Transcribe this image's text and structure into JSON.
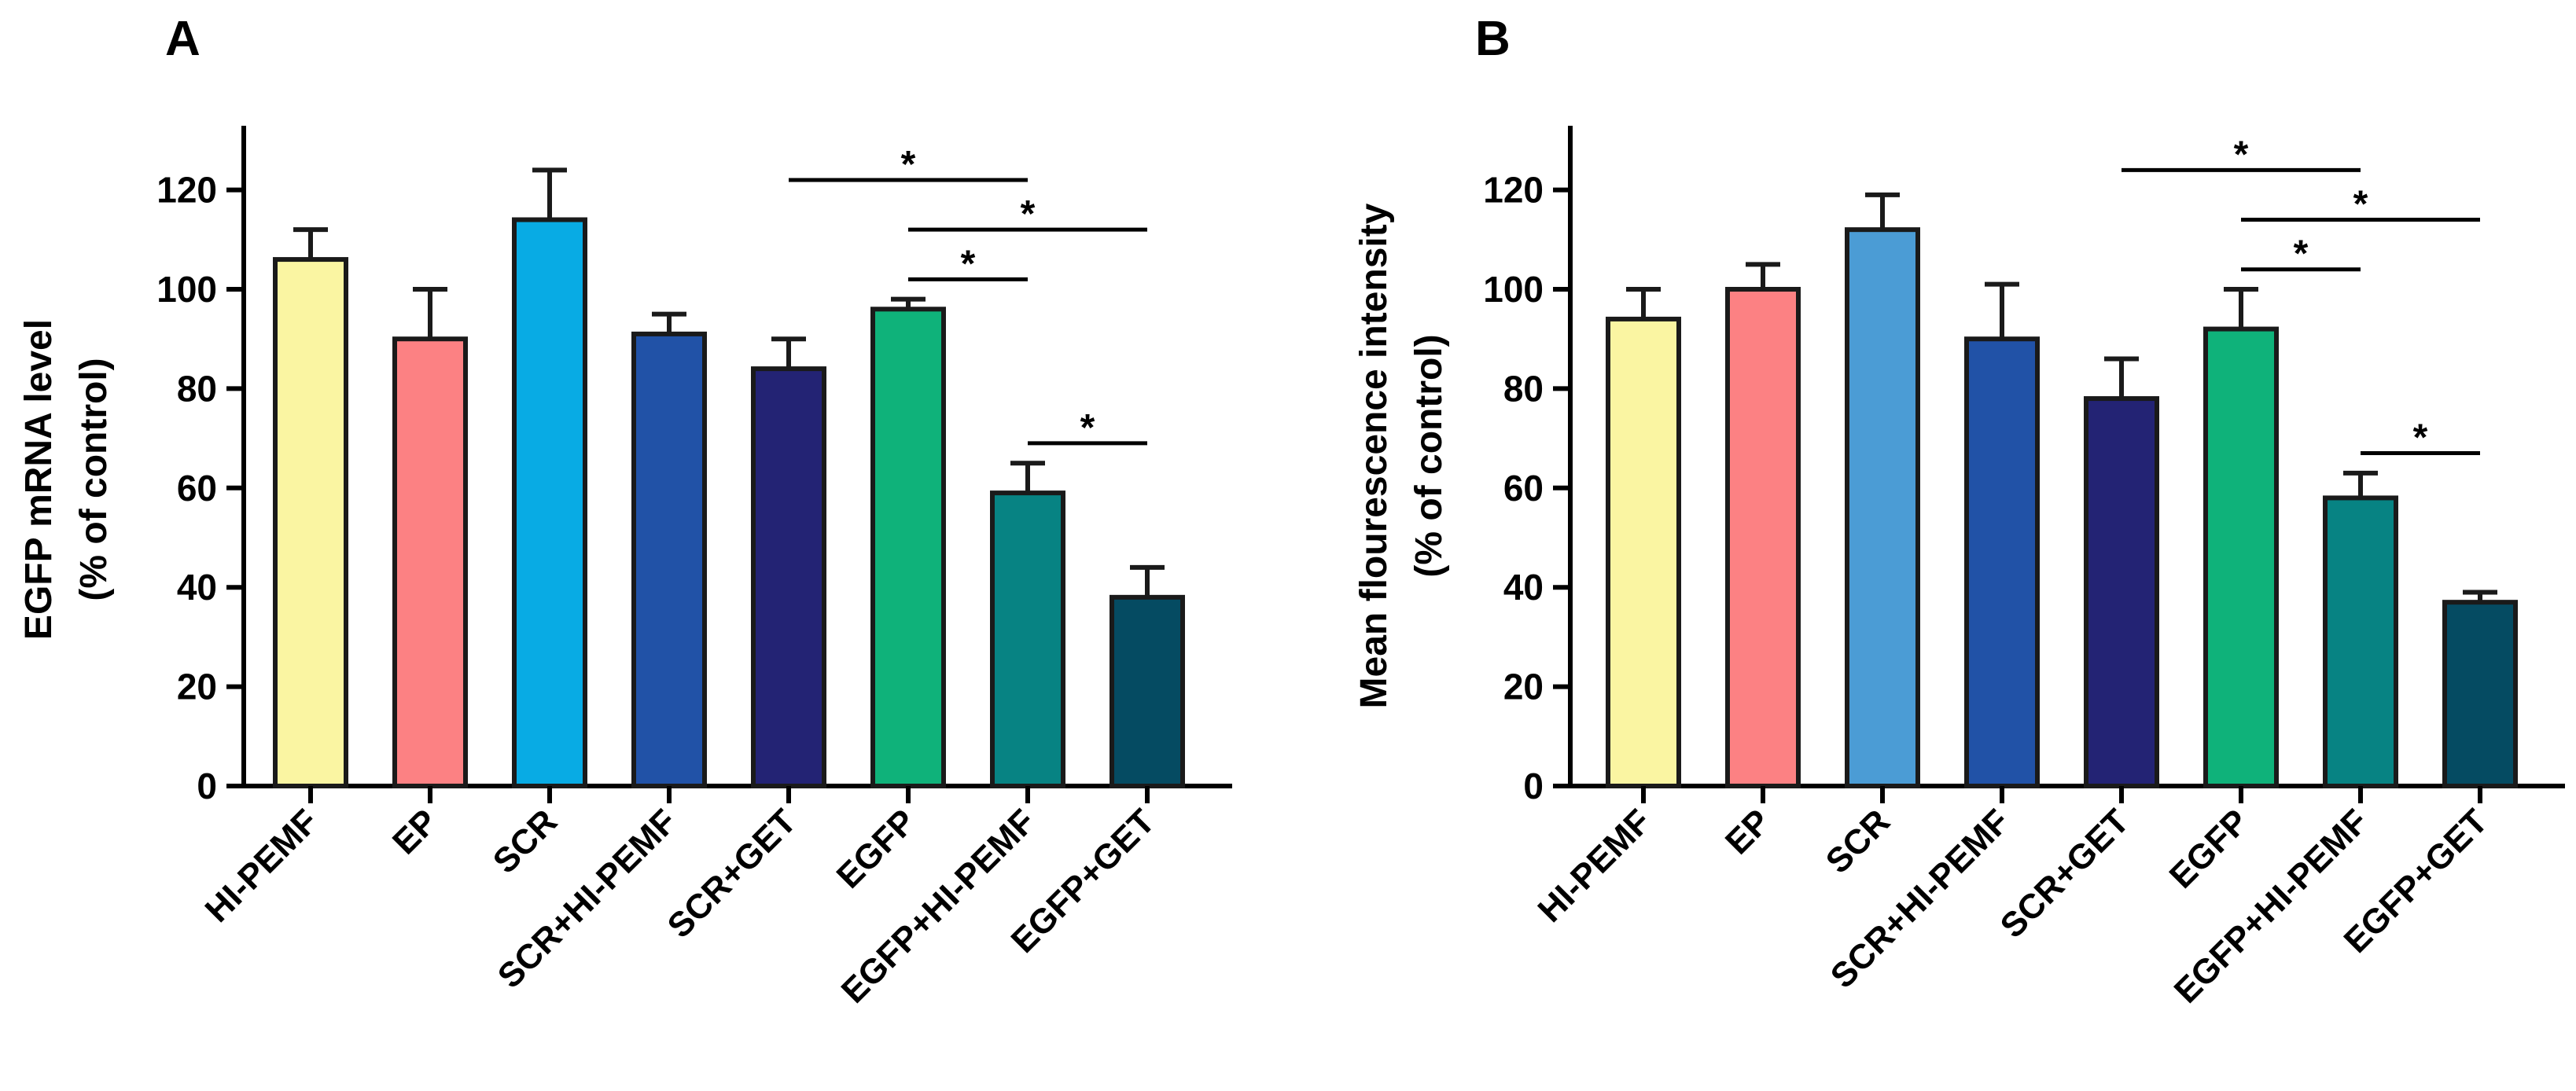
{
  "chart_data": [
    {
      "panel": "A",
      "type": "bar",
      "ylabel_line1": "EGFP mRNA level",
      "ylabel_line2": "(% of control)",
      "ylim": [
        0,
        130
      ],
      "yticks": [
        "0",
        "20",
        "40",
        "60",
        "80",
        "100",
        "120"
      ],
      "categories": [
        "HI-PEMF",
        "EP",
        "SCR",
        "SCR+HI-PEMF",
        "SCR+GET",
        "EGFP",
        "EGFP+HI-PEMF",
        "EGFP+GET"
      ],
      "values": [
        106,
        90,
        114,
        91,
        84,
        96,
        59,
        38
      ],
      "errors": [
        6,
        10,
        10,
        4,
        6,
        2,
        6,
        6
      ],
      "colors": [
        "#FAF5A2",
        "#FC8183",
        "#08ABE4",
        "#2152A7",
        "#232374",
        "#0FB27A",
        "#078383",
        "#054B62"
      ],
      "significance": [
        {
          "from": 4,
          "to": 6,
          "level": 122,
          "label": "*"
        },
        {
          "from": 5,
          "to": 7,
          "level": 112,
          "label": "*"
        },
        {
          "from": 5,
          "to": 6,
          "level": 102,
          "label": "*"
        },
        {
          "from": 6,
          "to": 7,
          "level": 69,
          "label": "*"
        }
      ]
    },
    {
      "panel": "B",
      "type": "bar",
      "ylabel_line1": "Mean flourescence intensity",
      "ylabel_line2": "(% of control)",
      "ylim": [
        0,
        130
      ],
      "yticks": [
        "0",
        "20",
        "40",
        "60",
        "80",
        "100",
        "120"
      ],
      "categories": [
        "HI-PEMF",
        "EP",
        "SCR",
        "SCR+HI-PEMF",
        "SCR+GET",
        "EGFP",
        "EGFP+HI-PEMF",
        "EGFP+GET"
      ],
      "values": [
        94,
        100,
        112,
        90,
        78,
        92,
        58,
        37
      ],
      "errors": [
        6,
        5,
        7,
        11,
        8,
        8,
        5,
        2
      ],
      "colors": [
        "#FAF5A2",
        "#FC8183",
        "#4B9CD5",
        "#2152A7",
        "#232374",
        "#0FB27A",
        "#078383",
        "#054B62"
      ],
      "significance": [
        {
          "from": 4,
          "to": 6,
          "level": 124,
          "label": "*"
        },
        {
          "from": 5,
          "to": 7,
          "level": 114,
          "label": "*"
        },
        {
          "from": 5,
          "to": 6,
          "level": 104,
          "label": "*"
        },
        {
          "from": 6,
          "to": 7,
          "level": 67,
          "label": "*"
        }
      ]
    }
  ]
}
